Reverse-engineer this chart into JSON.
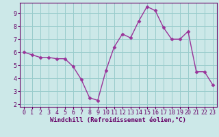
{
  "x": [
    0,
    1,
    2,
    3,
    4,
    5,
    6,
    7,
    8,
    9,
    10,
    11,
    12,
    13,
    14,
    15,
    16,
    17,
    18,
    19,
    20,
    21,
    22,
    23
  ],
  "y": [
    6.0,
    5.8,
    5.6,
    5.6,
    5.5,
    5.5,
    4.9,
    3.9,
    2.5,
    2.3,
    4.6,
    6.4,
    7.4,
    7.1,
    8.4,
    9.5,
    9.2,
    7.9,
    7.0,
    7.0,
    7.6,
    4.5,
    4.5,
    3.5
  ],
  "line_color": "#993399",
  "marker": "D",
  "marker_size": 2.5,
  "bg_color": "#cce8e8",
  "grid_color": "#99cccc",
  "xlabel": "Windchill (Refroidissement éolien,°C)",
  "xlim": [
    -0.5,
    23.5
  ],
  "ylim": [
    1.8,
    9.8
  ],
  "yticks": [
    2,
    3,
    4,
    5,
    6,
    7,
    8,
    9
  ],
  "xticks": [
    0,
    1,
    2,
    3,
    4,
    5,
    6,
    7,
    8,
    9,
    10,
    11,
    12,
    13,
    14,
    15,
    16,
    17,
    18,
    19,
    20,
    21,
    22,
    23
  ],
  "axis_color": "#660066",
  "tick_color": "#660066",
  "spine_color": "#660066",
  "label_fontsize": 6.5,
  "tick_fontsize": 6.0,
  "line_width": 1.0
}
